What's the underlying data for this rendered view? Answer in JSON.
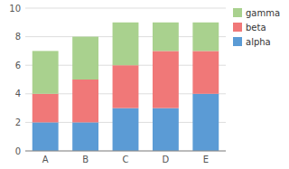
{
  "chart_data": {
    "type": "bar",
    "stacked": true,
    "categories": [
      "A",
      "B",
      "C",
      "D",
      "E"
    ],
    "series": [
      {
        "name": "alpha",
        "color": "#5B9BD5",
        "values": [
          2,
          2,
          3,
          3,
          4
        ]
      },
      {
        "name": "beta",
        "color": "#F07878",
        "values": [
          2,
          3,
          3,
          4,
          3
        ]
      },
      {
        "name": "gamma",
        "color": "#A9D18E",
        "values": [
          3,
          3,
          3,
          2,
          2
        ]
      }
    ],
    "ylim": [
      0,
      10
    ],
    "yticks": [
      0,
      2,
      4,
      6,
      8,
      10
    ],
    "grid": true,
    "legend": "upper right"
  }
}
